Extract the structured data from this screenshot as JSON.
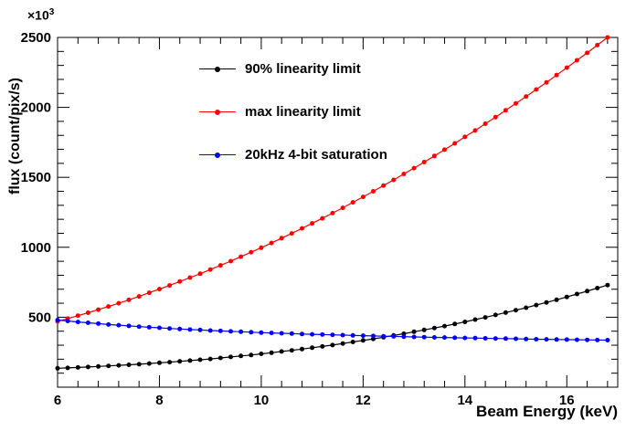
{
  "chart_data": {
    "type": "line",
    "title": "",
    "xlabel": "Beam Energy (keV)",
    "ylabel": "flux (count/pix/s)",
    "y_exponent": {
      "prefix": "×10",
      "sup": "3"
    },
    "xlim": [
      6,
      17
    ],
    "ylim": [
      0,
      2500
    ],
    "x_ticks": [
      6,
      8,
      10,
      12,
      14,
      16
    ],
    "y_ticks": [
      500,
      1000,
      1500,
      2000,
      2500
    ],
    "grid": false,
    "legend_position": "top-left-inside",
    "x": [
      6,
      6.2,
      6.4,
      6.6,
      6.8,
      7,
      7.2,
      7.4,
      7.6,
      7.8,
      8,
      8.2,
      8.4,
      8.6,
      8.8,
      9,
      9.2,
      9.4,
      9.6,
      9.8,
      10,
      10.2,
      10.4,
      10.6,
      10.8,
      11,
      11.2,
      11.4,
      11.6,
      11.8,
      12,
      12.2,
      12.4,
      12.6,
      12.8,
      13,
      13.2,
      13.4,
      13.6,
      13.8,
      14,
      14.2,
      14.4,
      14.6,
      14.8,
      15,
      15.2,
      15.4,
      15.6,
      15.8,
      16,
      16.2,
      16.4,
      16.6,
      16.8
    ],
    "series": [
      {
        "name": "90% linearity limit",
        "color": "#000000",
        "marker": "filled-circle",
        "values": [
          135,
          138,
          141,
          144,
          148,
          152,
          156,
          160,
          164,
          169,
          174,
          179,
          185,
          190,
          196,
          202,
          209,
          216,
          223,
          230,
          238,
          246,
          255,
          263,
          272,
          282,
          291,
          301,
          312,
          323,
          334,
          345,
          357,
          370,
          382,
          396,
          409,
          423,
          437,
          452,
          467,
          483,
          499,
          516,
          533,
          550,
          568,
          587,
          606,
          625,
          645,
          666,
          687,
          708,
          730
        ]
      },
      {
        "name": "max linearity limit",
        "color": "#ff0000",
        "marker": "filled-circle",
        "values": [
          470,
          490,
          511,
          532,
          554,
          577,
          600,
          624,
          649,
          675,
          701,
          727,
          755,
          783,
          811,
          841,
          871,
          901,
          933,
          965,
          997,
          1031,
          1065,
          1099,
          1135,
          1171,
          1207,
          1244,
          1282,
          1321,
          1360,
          1400,
          1441,
          1482,
          1524,
          1566,
          1609,
          1653,
          1698,
          1743,
          1789,
          1835,
          1883,
          1930,
          1979,
          2028,
          2078,
          2128,
          2179,
          2231,
          2284,
          2337,
          2390,
          2445,
          2500
        ]
      },
      {
        "name": "20kHz 4-bit saturation",
        "color": "#0000ff",
        "marker": "filled-circle",
        "values": [
          480,
          473,
          466,
          460,
          454,
          448,
          443,
          438,
          433,
          428,
          424,
          420,
          416,
          412,
          409,
          405,
          402,
          399,
          396,
          393,
          390,
          388,
          385,
          383,
          380,
          378,
          376,
          374,
          372,
          370,
          368,
          366,
          364,
          363,
          361,
          359,
          358,
          356,
          355,
          353,
          352,
          351,
          349,
          348,
          347,
          346,
          344,
          343,
          342,
          341,
          340,
          339,
          338,
          337,
          336
        ]
      }
    ]
  }
}
